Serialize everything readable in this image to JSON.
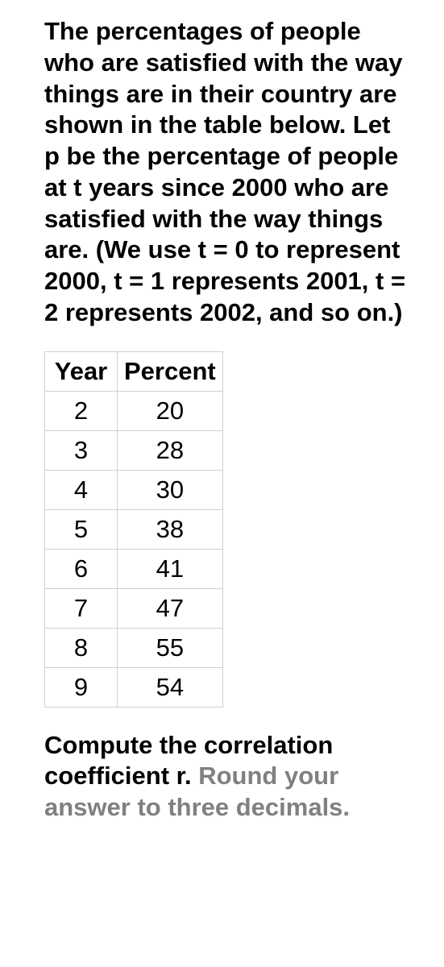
{
  "question": "The percentages of people who are satisfied with the way things are in their country are shown in the table below. Let p be the percentage of people at t years since 2000 who are satisfied with the way things are. (We use t = 0 to represent 2000, t = 1 represents 2001, t = 2 represents 2002, and so on.)",
  "table": {
    "columns": [
      "Year",
      "Percent"
    ],
    "rows": [
      [
        2,
        20
      ],
      [
        3,
        28
      ],
      [
        4,
        30
      ],
      [
        5,
        38
      ],
      [
        6,
        41
      ],
      [
        7,
        47
      ],
      [
        8,
        55
      ],
      [
        9,
        54
      ]
    ],
    "border_color": "#d0d0d0",
    "text_color": "#000000",
    "fontsize": 31
  },
  "prompt": {
    "part1": "Compute the correlation coefficient r. ",
    "part2": "Round your answer to three decimals.",
    "color_main": "#000000",
    "color_hint": "#808080"
  }
}
